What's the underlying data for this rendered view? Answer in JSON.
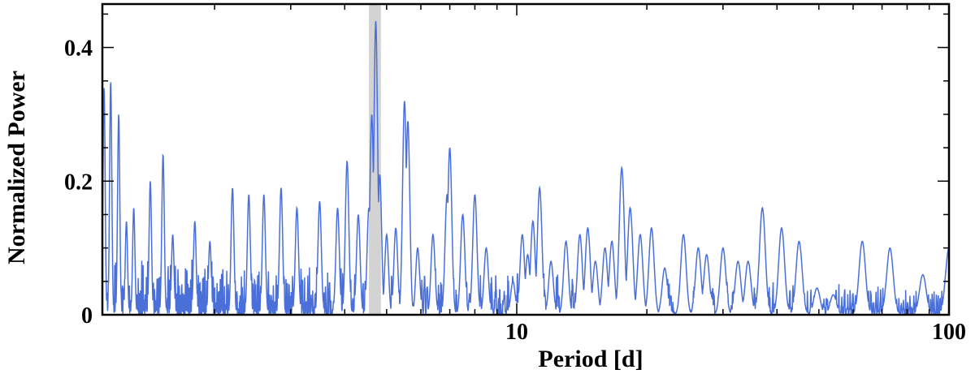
{
  "chart_data": {
    "type": "line",
    "title": "",
    "xlabel": "Period [d]",
    "ylabel": "Normalized Power",
    "xscale": "log",
    "xlim": [
      1.1,
      100
    ],
    "ylim": [
      0,
      0.465
    ],
    "grid": false,
    "legend": "none",
    "line_color": "#4a6fd8",
    "highlight_color": "#d3d3d3",
    "highlight_band": [
      4.55,
      4.85
    ],
    "x_ticks": [
      {
        "value": 10,
        "label": "10"
      },
      {
        "value": 100,
        "label": "100"
      }
    ],
    "y_ticks": [
      {
        "value": 0,
        "label": "0"
      },
      {
        "value": 0.2,
        "label": "0.2"
      },
      {
        "value": 0.4,
        "label": "0.4"
      }
    ],
    "series": [
      {
        "peaks": [
          [
            1.11,
            0.34
          ],
          [
            1.15,
            0.35
          ],
          [
            1.2,
            0.3
          ],
          [
            1.25,
            0.14
          ],
          [
            1.3,
            0.16
          ],
          [
            1.42,
            0.2
          ],
          [
            1.52,
            0.24
          ],
          [
            1.6,
            0.12
          ],
          [
            1.8,
            0.14
          ],
          [
            1.95,
            0.11
          ],
          [
            2.2,
            0.19
          ],
          [
            2.4,
            0.18
          ],
          [
            2.6,
            0.18
          ],
          [
            2.85,
            0.19
          ],
          [
            3.1,
            0.16
          ],
          [
            3.5,
            0.17
          ],
          [
            3.85,
            0.16
          ],
          [
            4.05,
            0.23
          ],
          [
            4.3,
            0.15
          ],
          [
            4.55,
            0.16
          ],
          [
            4.62,
            0.3
          ],
          [
            4.72,
            0.44
          ],
          [
            4.82,
            0.21
          ],
          [
            5.0,
            0.12
          ],
          [
            5.25,
            0.13
          ],
          [
            5.5,
            0.32
          ],
          [
            5.6,
            0.29
          ],
          [
            5.9,
            0.1
          ],
          [
            6.4,
            0.12
          ],
          [
            6.9,
            0.18
          ],
          [
            7.0,
            0.25
          ],
          [
            7.5,
            0.15
          ],
          [
            8.0,
            0.18
          ],
          [
            8.5,
            0.1
          ],
          [
            9.8,
            0.05
          ],
          [
            10.3,
            0.12
          ],
          [
            10.6,
            0.09
          ],
          [
            10.9,
            0.14
          ],
          [
            11.3,
            0.19
          ],
          [
            12.0,
            0.08
          ],
          [
            13.0,
            0.11
          ],
          [
            14.0,
            0.12
          ],
          [
            14.6,
            0.13
          ],
          [
            15.2,
            0.08
          ],
          [
            16.0,
            0.1
          ],
          [
            16.6,
            0.11
          ],
          [
            17.5,
            0.22
          ],
          [
            18.3,
            0.16
          ],
          [
            19.3,
            0.12
          ],
          [
            20.5,
            0.13
          ],
          [
            22.0,
            0.07
          ],
          [
            24.3,
            0.12
          ],
          [
            26.3,
            0.1
          ],
          [
            27.5,
            0.09
          ],
          [
            30.0,
            0.1
          ],
          [
            32.5,
            0.08
          ],
          [
            34.3,
            0.08
          ],
          [
            37.0,
            0.16
          ],
          [
            41.0,
            0.13
          ],
          [
            45.0,
            0.11
          ],
          [
            49.5,
            0.04
          ],
          [
            54.0,
            0.03
          ],
          [
            63.0,
            0.11
          ],
          [
            73.0,
            0.1
          ],
          [
            87.0,
            0.06
          ],
          [
            100.0,
            0.1
          ]
        ]
      }
    ]
  }
}
